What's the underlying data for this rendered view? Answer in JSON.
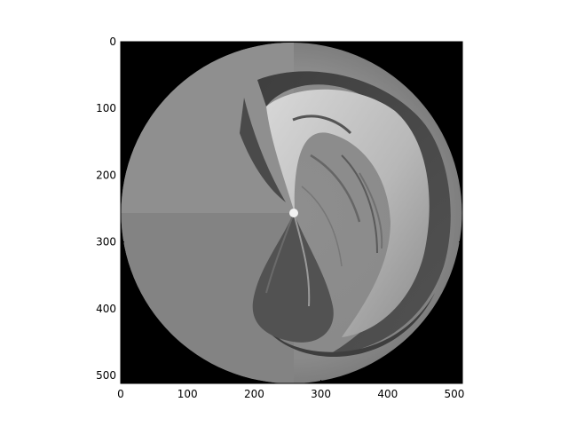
{
  "image": {
    "description_colors": {
      "background": "#000000",
      "disc": "#8a8a8a",
      "frame": "#000000"
    },
    "x_ticks": [
      "0",
      "100",
      "200",
      "300",
      "400",
      "500"
    ],
    "y_ticks": [
      "0",
      "100",
      "200",
      "300",
      "400",
      "500"
    ],
    "tick_values": [
      0,
      100,
      200,
      300,
      400,
      500
    ],
    "xlim": [
      0,
      512
    ],
    "ylim": [
      512,
      0
    ]
  }
}
